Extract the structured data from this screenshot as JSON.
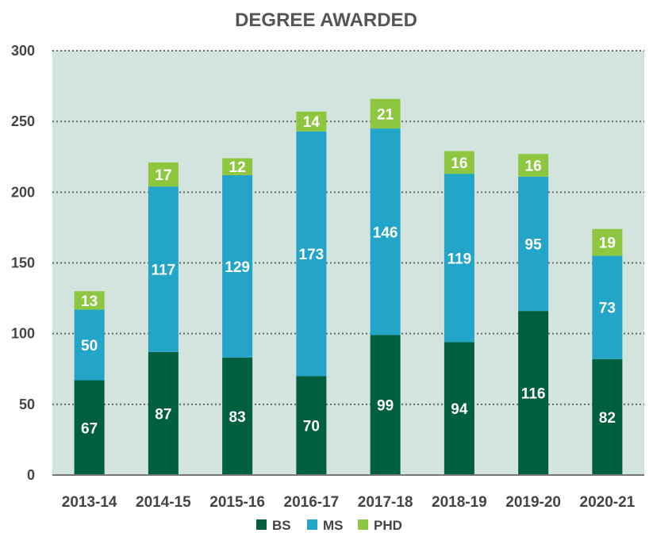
{
  "chart_data": {
    "type": "bar",
    "stacked": true,
    "title": "DEGREE AWARDED",
    "xlabel": "",
    "ylabel": "",
    "ylim": [
      0,
      300
    ],
    "yticks": [
      "0",
      "50",
      "100",
      "150",
      "200",
      "250",
      "300"
    ],
    "categories": [
      "2013-14",
      "2014-15",
      "2015-16",
      "2016-17",
      "2017-18",
      "2018-19",
      "2019-20",
      "2020-21"
    ],
    "series": [
      {
        "name": "BS",
        "color": "#005f3f",
        "values": [
          67,
          87,
          83,
          70,
          99,
          94,
          116,
          82
        ]
      },
      {
        "name": "MS",
        "color": "#22a5c9",
        "values": [
          50,
          117,
          129,
          173,
          146,
          119,
          95,
          73
        ]
      },
      {
        "name": "PHD",
        "color": "#8dc63f",
        "values": [
          13,
          17,
          12,
          14,
          21,
          16,
          16,
          19
        ]
      }
    ],
    "legend_position": "bottom",
    "grid": true,
    "plot_background": "#d3e3de"
  }
}
